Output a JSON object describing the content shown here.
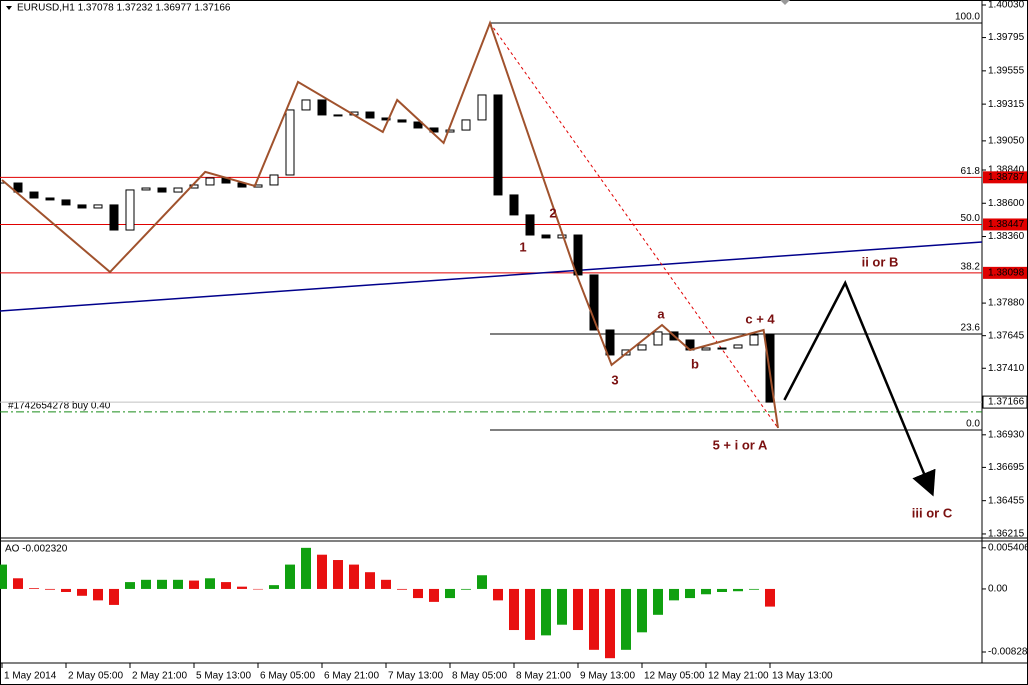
{
  "chart_data": [
    {
      "type": "candlestick",
      "title": "EURUSD,H1  1.37078 1.37232 1.36977 1.37166",
      "values": [
        1.38746,
        1.38681,
        1.38638,
        1.38624,
        1.38588,
        1.38566,
        1.38588,
        1.38407,
        1.38696,
        1.3871,
        1.38681,
        1.3871,
        1.38732,
        1.38782,
        1.38746,
        1.38717,
        1.38732,
        1.38804,
        1.39273,
        1.39345,
        1.39237,
        1.39237,
        1.39258,
        1.39215,
        1.39201,
        1.39186,
        1.39143,
        1.39114,
        1.39128,
        1.39201,
        1.39381,
        1.3866,
        1.38516,
        1.38371,
        1.3835,
        1.38371,
        1.38083,
        1.37686,
        1.37506,
        1.37542,
        1.37578,
        1.37672,
        1.37614,
        1.37542,
        1.37556,
        1.37556,
        1.37578,
        1.3765,
        1.37166
      ],
      "ylim": [
        1.36193,
        1.40066
      ],
      "yticks": [
        {
          "value": 1.4003,
          "label": "1.40030"
        },
        1.39795,
        1.39555,
        1.39315,
        {
          "value": 1.3905,
          "label": "1.39050"
        },
        {
          "value": 1.3884,
          "label": "1.38840"
        },
        {
          "value": 1.386,
          "label": "1.38600"
        },
        {
          "value": 1.3836,
          "label": "1.38360"
        },
        {
          "value": 1.3788,
          "label": "1.37880"
        },
        1.37645,
        {
          "value": 1.3741,
          "label": "1.37410"
        },
        {
          "value": 1.3693,
          "label": "1.36930"
        },
        1.36695,
        1.36455,
        1.36215
      ],
      "last_price": 1.37166,
      "fib_levels": [
        {
          "label": "100.0",
          "value": 1.399,
          "color": "#000000",
          "start": 30.5
        },
        {
          "label": "61.8",
          "value": 1.38787,
          "color": "#e00000",
          "boxed": true
        },
        {
          "label": "50.0",
          "value": 1.38447,
          "color": "#e00000",
          "boxed": true
        },
        {
          "label": "38.2",
          "value": 1.38098,
          "color": "#e00000",
          "boxed": true
        },
        {
          "label": "23.6",
          "value": 1.37657,
          "color": "#000000",
          "start": 30.5
        },
        {
          "label": "0.0",
          "value": 1.36965,
          "color": "#000000",
          "start": 30.5
        }
      ],
      "order": {
        "label": "#1742654278 buy 0.40",
        "value": 1.37095,
        "color": "#1a8c1a"
      },
      "zigzag": {
        "color": "#a0522d",
        "x": [
          0,
          6.75,
          12.7,
          15.8,
          18.5,
          23.8,
          24.7,
          27.6,
          30.5,
          35.8,
          38.1,
          41.25,
          43,
          47.6,
          48.5
        ],
        "values": [
          1.38768,
          1.38104,
          1.38826,
          1.38725,
          1.39475,
          1.39114,
          1.39345,
          1.39035,
          1.399,
          1.38119,
          1.37434,
          1.37722,
          1.37542,
          1.37686,
          1.36979
        ]
      },
      "projection": {
        "color": "#e00000",
        "x": [
          30.5,
          48.5
        ],
        "values": [
          1.399,
          1.36979
        ]
      },
      "trendline": {
        "color": "#00008b",
        "x": [
          -0.125,
          61.25
        ],
        "values": [
          1.37823,
          1.38321
        ]
      },
      "forecast": {
        "color": "#000000",
        "x": [
          48.9,
          52.7,
          58.1
        ],
        "values": [
          1.37181,
          1.38025,
          1.36518
        ]
      },
      "annotations": [
        "1",
        "2",
        "3",
        "a",
        "b",
        "c + 4",
        "5 + i or A",
        "ii or B",
        "iii or C"
      ]
    },
    {
      "type": "bar",
      "title": "AO -0.002320",
      "categories": [
        "1 May 2014",
        null,
        null,
        null,
        "2 May 05:00",
        null,
        null,
        null,
        "2 May 21:00",
        null,
        null,
        null,
        "5 May 13:00",
        null,
        null,
        null,
        "6 May 05:00",
        null,
        null,
        null,
        "6 May 21:00",
        null,
        null,
        null,
        "7 May 13:00",
        null,
        null,
        null,
        "8 May 05:00",
        null,
        null,
        null,
        "8 May 21:00",
        null,
        null,
        null,
        "9 May 13:00",
        null,
        null,
        null,
        "12 May 05:00",
        null,
        null,
        null,
        "12 May 21:00",
        null,
        null,
        null,
        "13 May 13:00"
      ],
      "values": [
        0.0032,
        0.0014,
        0.0001,
        -0.0001,
        -0.0004,
        -0.0009,
        -0.0015,
        -0.0021,
        0.0009,
        0.0012,
        0.0012,
        0.0012,
        0.0011,
        0.0014,
        0.0009,
        0.0003,
        0,
        0.0005,
        0.0032,
        0.0054,
        0.0045,
        0.0038,
        0.0032,
        0.0022,
        0.0012,
        -0.0001,
        -0.0012,
        -0.0017,
        -0.0012,
        -0.0001,
        0.0018,
        -0.0015,
        -0.0054,
        -0.0067,
        -0.0061,
        -0.0047,
        -0.0054,
        -0.008,
        -0.0091,
        -0.008,
        -0.0057,
        -0.0034,
        -0.0015,
        -0.0012,
        -0.0007,
        -0.0004,
        -0.0003,
        -0.0001,
        -0.00232
      ],
      "colors": {
        "up": "#10a010",
        "down": "#e81010"
      },
      "ylim": [
        -0.0096,
        0.0063
      ],
      "yticks": [
        0.005406,
        {
          "value": 0,
          "label": "0.00"
        },
        -0.008285
      ]
    }
  ]
}
